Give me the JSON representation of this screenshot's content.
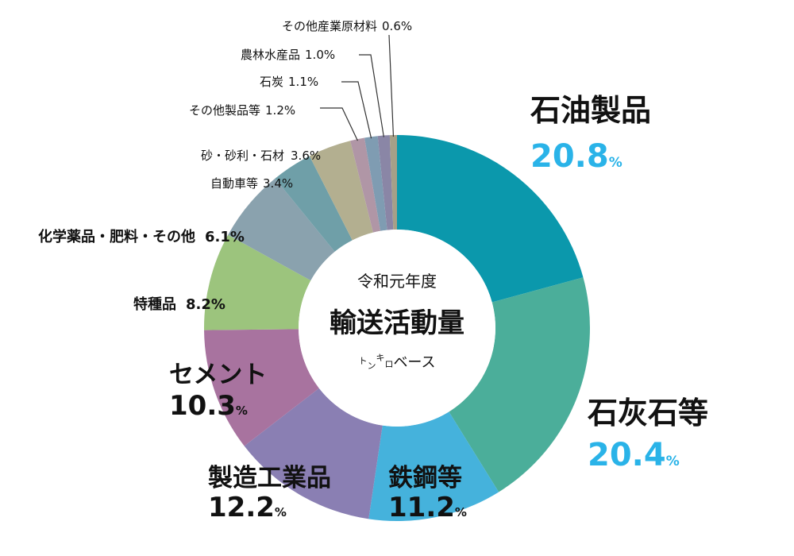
{
  "chart_data": {
    "type": "pie",
    "donut": true,
    "center_text": {
      "line1": "令和元年度",
      "line2": "輸送活動量",
      "unit_parts": [
        "ト",
        "ン",
        "キ",
        "ロ",
        "ベース"
      ]
    },
    "slices": [
      {
        "label": "石油製品",
        "value": 20.8,
        "value_text": "20.8",
        "unit": "%",
        "color": "#0b98ac"
      },
      {
        "label": "石灰石等",
        "value": 20.4,
        "value_text": "20.4",
        "unit": "%",
        "color": "#4bae9a"
      },
      {
        "label": "鉄鋼等",
        "value": 11.2,
        "value_text": "11.2",
        "unit": "%",
        "color": "#45b2dc"
      },
      {
        "label": "製造工業品",
        "value": 12.2,
        "value_text": "12.2",
        "unit": "%",
        "color": "#8a7fb3"
      },
      {
        "label": "セメント",
        "value": 10.3,
        "value_text": "10.3",
        "unit": "%",
        "color": "#a8739f"
      },
      {
        "label": "特種品",
        "value": 8.2,
        "value_text": "8.2",
        "unit": "%",
        "color": "#9cc47d"
      },
      {
        "label": "化学薬品・肥料・その他",
        "value": 6.1,
        "value_text": "6.1",
        "unit": "%",
        "color": "#8aa2ae"
      },
      {
        "label": "自動車等",
        "value": 3.4,
        "value_text": "3.4",
        "unit": "%",
        "color": "#6f9fa8"
      },
      {
        "label": "砂・砂利・石材",
        "value": 3.6,
        "value_text": "3.6",
        "unit": "%",
        "color": "#b3af90"
      },
      {
        "label": "その他製品等",
        "value": 1.2,
        "value_text": "1.2",
        "unit": "%",
        "color": "#b096a6"
      },
      {
        "label": "石炭",
        "value": 1.1,
        "value_text": "1.1",
        "unit": "%",
        "color": "#7f9cb2"
      },
      {
        "label": "農林水産品",
        "value": 1.0,
        "value_text": "1.0",
        "unit": "%",
        "color": "#8a86a6"
      },
      {
        "label": "その他産業原材料",
        "value": 0.6,
        "value_text": "0.6",
        "unit": "%",
        "color": "#a6a088"
      }
    ],
    "highlight_color": "#2ab3e8"
  }
}
